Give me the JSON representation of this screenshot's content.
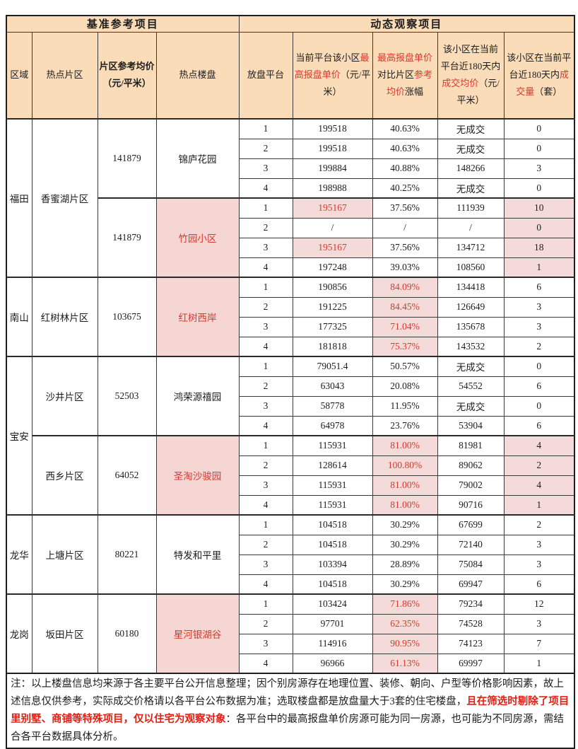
{
  "colors": {
    "header_bg": "#fbdcb8",
    "highlight_pink": "#f4dad8",
    "estate_pink": "#f6d6d3",
    "red_text": "#d63a2f",
    "note_red": "#e31e13",
    "border": "#3a3a3a"
  },
  "table": {
    "header": {
      "base_title": "基准参考项目",
      "dynamic_title": "动态观察项目",
      "columns": [
        {
          "id": "region",
          "parts": [
            {
              "t": "区域"
            }
          ]
        },
        {
          "id": "district",
          "parts": [
            {
              "t": "热点片区"
            }
          ]
        },
        {
          "id": "avg-price",
          "bold": true,
          "parts": [
            {
              "t": "片区参考均价（元/平米）"
            }
          ]
        },
        {
          "id": "estate",
          "parts": [
            {
              "t": "热点楼盘"
            }
          ]
        },
        {
          "id": "platform",
          "parts": [
            {
              "t": "放盘平台"
            }
          ]
        },
        {
          "id": "max-price",
          "parts": [
            {
              "t": "当前平台该小区"
            },
            {
              "t": "最高报盘单价",
              "red": true
            },
            {
              "t": "（元/平米）"
            }
          ]
        },
        {
          "id": "pct",
          "parts": [
            {
              "t": "最高报盘单价",
              "red": true
            },
            {
              "t": "对比片区"
            },
            {
              "t": "参考均价",
              "red": true
            },
            {
              "t": "涨幅"
            }
          ]
        },
        {
          "id": "deal-price",
          "parts": [
            {
              "t": "该小区在当前平台近180天内"
            },
            {
              "t": "成交均价",
              "red": true
            },
            {
              "t": "（元/平米）"
            }
          ]
        },
        {
          "id": "volume",
          "parts": [
            {
              "t": "该小区在当前平台近180天内"
            },
            {
              "t": "成交量",
              "red": true
            },
            {
              "t": "（套）"
            }
          ]
        }
      ]
    },
    "groups": [
      {
        "region": {
          "name": "福田",
          "rowspan": 8
        },
        "district": {
          "name": "香蜜湖片区",
          "rowspan": 8
        },
        "avg_price": "141879",
        "estate": {
          "name": "锦庐花园",
          "highlight": false
        },
        "rows": [
          {
            "platform": "1",
            "price": "199518",
            "pct": "40.63%",
            "deal": "无成交",
            "vol": "0"
          },
          {
            "platform": "2",
            "price": "199518",
            "pct": "40.63%",
            "deal": "无成交",
            "vol": "0"
          },
          {
            "platform": "3",
            "price": "199884",
            "pct": "40.88%",
            "deal": "148266",
            "vol": "3"
          },
          {
            "platform": "4",
            "price": "198988",
            "pct": "40.25%",
            "deal": "无成交",
            "vol": "0"
          }
        ]
      },
      {
        "avg_price": "141879",
        "estate": {
          "name": "竹园小区",
          "highlight": true
        },
        "rows": [
          {
            "platform": "1",
            "price": "195167",
            "price_hl": true,
            "pct": "37.56%",
            "deal": "111939",
            "vol": "10",
            "vol_hl": true
          },
          {
            "platform": "2",
            "price": "/",
            "pct": "/",
            "deal": "/",
            "vol": "0",
            "vol_hl": true
          },
          {
            "platform": "3",
            "price": "195167",
            "price_hl": true,
            "pct": "37.56%",
            "deal": "134712",
            "vol": "18",
            "vol_hl": true
          },
          {
            "platform": "4",
            "price": "197248",
            "pct": "39.03%",
            "deal": "108560",
            "vol": "1",
            "vol_hl": true
          }
        ]
      },
      {
        "region": {
          "name": "南山",
          "rowspan": 4
        },
        "district": {
          "name": "红树林片区",
          "rowspan": 4
        },
        "avg_price": "103675",
        "estate": {
          "name": "红树西岸",
          "highlight": true
        },
        "rows": [
          {
            "platform": "1",
            "price": "190856",
            "pct": "84.09%",
            "pct_hl": true,
            "deal": "134418",
            "vol": "6"
          },
          {
            "platform": "2",
            "price": "191225",
            "pct": "84.45%",
            "pct_hl": true,
            "deal": "126649",
            "vol": "3"
          },
          {
            "platform": "3",
            "price": "177325",
            "pct": "71.04%",
            "pct_hl": true,
            "deal": "135678",
            "vol": "3"
          },
          {
            "platform": "4",
            "price": "181818",
            "pct": "75.37%",
            "pct_hl": true,
            "deal": "143532",
            "vol": "2"
          }
        ]
      },
      {
        "region": {
          "name": "宝安",
          "rowspan": 8
        },
        "district": {
          "name": "沙井片区",
          "rowspan": 4
        },
        "avg_price": "52503",
        "estate": {
          "name": "鸿荣源禧园",
          "highlight": false
        },
        "rows": [
          {
            "platform": "1",
            "price": "79051.4",
            "pct": "50.57%",
            "deal": "无成交",
            "vol": "0"
          },
          {
            "platform": "2",
            "price": "63043",
            "pct": "20.08%",
            "deal": "54552",
            "vol": "6"
          },
          {
            "platform": "3",
            "price": "58778",
            "pct": "11.95%",
            "deal": "无成交",
            "vol": "0"
          },
          {
            "platform": "4",
            "price": "64978",
            "pct": "23.76%",
            "deal": "53904",
            "vol": "6"
          }
        ]
      },
      {
        "district": {
          "name": "西乡片区",
          "rowspan": 4
        },
        "avg_price": "64052",
        "estate": {
          "name": "圣淘沙骏园",
          "highlight": true
        },
        "rows": [
          {
            "platform": "1",
            "price": "115931",
            "pct": "81.00%",
            "pct_hl": true,
            "deal": "81981",
            "vol": "4",
            "vol_hl": true
          },
          {
            "platform": "2",
            "price": "128614",
            "pct": "100.80%",
            "pct_hl": true,
            "deal": "89062",
            "vol": "2",
            "vol_hl": true
          },
          {
            "platform": "3",
            "price": "115931",
            "pct": "81.00%",
            "pct_hl": true,
            "deal": "79002",
            "vol": "4",
            "vol_hl": true
          },
          {
            "platform": "4",
            "price": "115931",
            "pct": "81.00%",
            "pct_hl": true,
            "deal": "90716",
            "vol": "1",
            "vol_hl": true
          }
        ]
      },
      {
        "region": {
          "name": "龙华",
          "rowspan": 4
        },
        "district": {
          "name": "上塘片区",
          "rowspan": 4
        },
        "avg_price": "80221",
        "estate": {
          "name": "特发和平里",
          "highlight": false
        },
        "rows": [
          {
            "platform": "1",
            "price": "104518",
            "pct": "30.29%",
            "deal": "67699",
            "vol": "2"
          },
          {
            "platform": "2",
            "price": "104518",
            "pct": "30.29%",
            "deal": "72140",
            "vol": "3"
          },
          {
            "platform": "3",
            "price": "103394",
            "pct": "28.89%",
            "deal": "75084",
            "vol": "3"
          },
          {
            "platform": "4",
            "price": "104518",
            "pct": "30.29%",
            "deal": "69947",
            "vol": "6"
          }
        ]
      },
      {
        "region": {
          "name": "龙岗",
          "rowspan": 4
        },
        "district": {
          "name": "坂田片区",
          "rowspan": 4
        },
        "avg_price": "60180",
        "estate": {
          "name": "星河银湖谷",
          "highlight": true
        },
        "rows": [
          {
            "platform": "1",
            "price": "103424",
            "pct": "71.86%",
            "pct_hl": true,
            "deal": "79234",
            "vol": "12"
          },
          {
            "platform": "2",
            "price": "97701",
            "pct": "62.35%",
            "pct_hl": true,
            "deal": "74528",
            "vol": "3"
          },
          {
            "platform": "3",
            "price": "114916",
            "pct": "90.95%",
            "pct_hl": true,
            "deal": "74123",
            "vol": "7"
          },
          {
            "platform": "4",
            "price": "96966",
            "pct": "61.13%",
            "pct_hl": true,
            "deal": "69997",
            "vol": "1"
          }
        ]
      }
    ]
  },
  "note": {
    "parts": [
      {
        "t": "注：以上楼盘信息均来源于各主要平台公开信息整理；因个别房源存在地理位置、装修、朝向、户型等价格影响因素，故上述信息仅供参考，实际成交价格请以各平台公布数据为准；选取楼盘都是放盘量大于3套的住宅楼盘，"
      },
      {
        "t": "且在筛选时剔除了项目里别墅、商铺等特殊项目，仅以住宅为观察对象",
        "red_bold": true
      },
      {
        "t": "：各平台中的最高报盘单价房源可能为同一房源，也可能为不同房源，需结合各平台数据具体分析。"
      }
    ]
  }
}
